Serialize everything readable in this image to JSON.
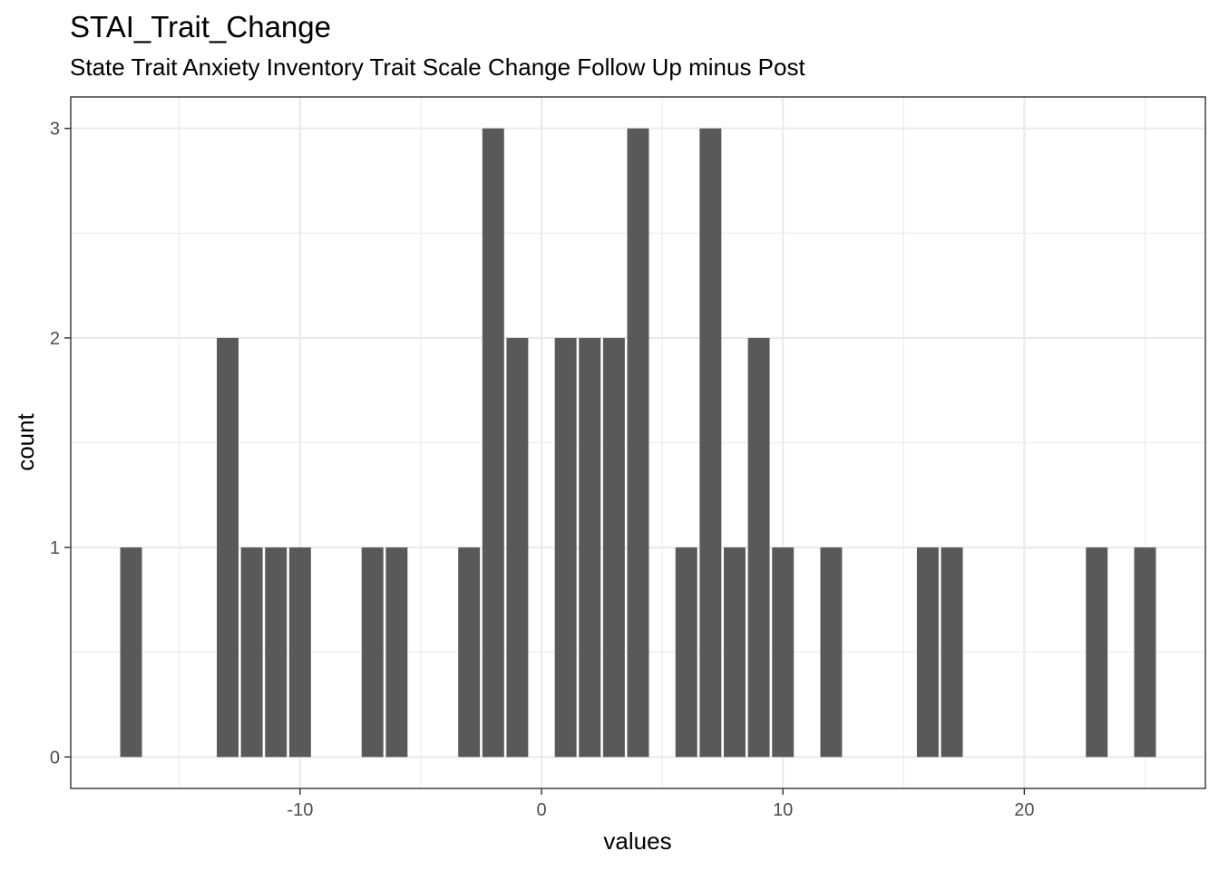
{
  "chart_data": {
    "type": "bar",
    "title": "STAI_Trait_Change",
    "subtitle": "State Trait Anxiety Inventory Trait Scale Change Follow Up minus Post",
    "xlabel": "values",
    "ylabel": "count",
    "xlim": [
      -19.5,
      27.5
    ],
    "ylim": [
      -0.15,
      3.15
    ],
    "x_ticks": [
      -10,
      0,
      10,
      20
    ],
    "x_tick_labels": [
      "-10",
      "0",
      "10",
      "20"
    ],
    "y_ticks": [
      0,
      1,
      2,
      3
    ],
    "y_tick_labels": [
      "0",
      "1",
      "2",
      "3"
    ],
    "grid": true,
    "bar_color": "#595959",
    "bars": [
      {
        "x": -17,
        "count": 1
      },
      {
        "x": -13,
        "count": 2
      },
      {
        "x": -12,
        "count": 1
      },
      {
        "x": -11,
        "count": 1
      },
      {
        "x": -10,
        "count": 1
      },
      {
        "x": -7,
        "count": 1
      },
      {
        "x": -6,
        "count": 1
      },
      {
        "x": -3,
        "count": 1
      },
      {
        "x": -2,
        "count": 3
      },
      {
        "x": -1,
        "count": 2
      },
      {
        "x": 1,
        "count": 2
      },
      {
        "x": 2,
        "count": 2
      },
      {
        "x": 3,
        "count": 2
      },
      {
        "x": 4,
        "count": 3
      },
      {
        "x": 6,
        "count": 1
      },
      {
        "x": 7,
        "count": 3
      },
      {
        "x": 8,
        "count": 1
      },
      {
        "x": 9,
        "count": 2
      },
      {
        "x": 10,
        "count": 1
      },
      {
        "x": 12,
        "count": 1
      },
      {
        "x": 16,
        "count": 1
      },
      {
        "x": 17,
        "count": 1
      },
      {
        "x": 23,
        "count": 1
      },
      {
        "x": 25,
        "count": 1
      }
    ]
  }
}
